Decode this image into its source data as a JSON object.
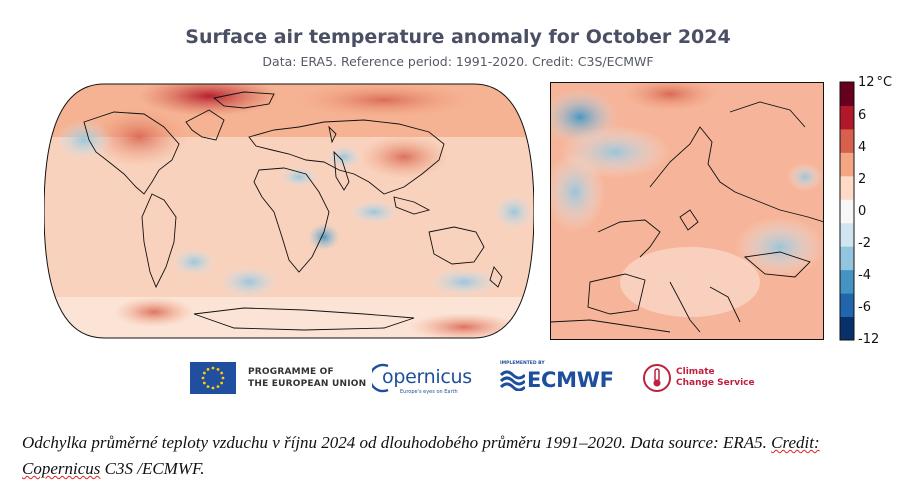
{
  "header": {
    "title": "Surface air temperature anomaly for October 2024",
    "subtitle": "Data: ERA5.  Reference period: 1991-2020.  Credit: C3S/ECMWF"
  },
  "colorbar": {
    "unit": "°C",
    "labels": [
      "12",
      "6",
      "4",
      "2",
      "0",
      "-2",
      "-4",
      "-6",
      "-12"
    ],
    "colors": [
      "#08306b",
      "#2166ac",
      "#4393c3",
      "#92c5de",
      "#d1e5f0",
      "#f7f7f7",
      "#fddbc7",
      "#f4a582",
      "#d6604d",
      "#b2182b",
      "#67001f"
    ]
  },
  "logos": {
    "eu_line1": "PROGRAMME OF",
    "eu_line2": "THE EUROPEAN UNION",
    "copernicus": "opernicus",
    "copernicus_tagline": "Europe's eyes on Earth",
    "ecmwf_implemented": "IMPLEMENTED BY",
    "ecmwf": "ECMWF",
    "ccs_line1": "Climate",
    "ccs_line2": "Change Service"
  },
  "caption": {
    "part1": "Odchylka průměrné teploty vzduchu v říjnu 2024 od dlouhodobého průměru 1991–2020. Data source: ERA5. ",
    "credit_word": "Credit:",
    "space": " ",
    "credit_name": "Copernicus",
    "part2": " C3S /ECMWF."
  }
}
